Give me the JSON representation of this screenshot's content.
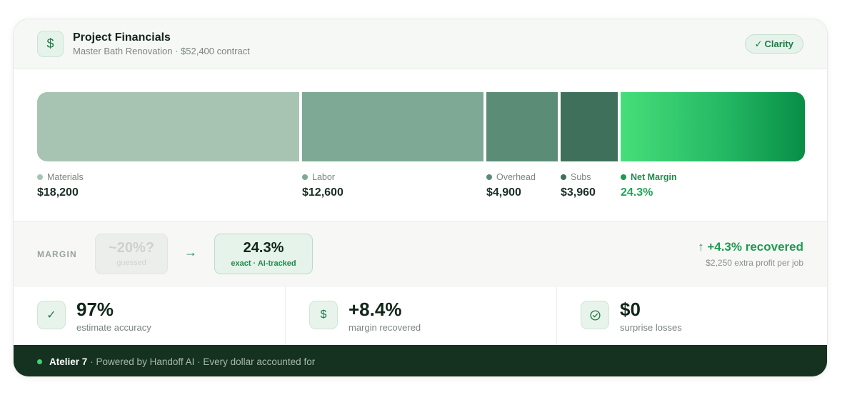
{
  "header": {
    "icon": "dollar-icon",
    "title": "Project Financials",
    "subtitle": "Master Bath Renovation · $52,400 contract",
    "badge_check": "✓",
    "badge_label": "Clarity"
  },
  "breakdown": {
    "colors": {
      "materials": "#a7c4b2",
      "labor": "#7da995",
      "overhead": "#5b8d76",
      "subs": "#3f705b",
      "net": "#25b964"
    },
    "materials": {
      "label": "Materials",
      "value": "$18,200"
    },
    "labor": {
      "label": "Labor",
      "value": "$12,600"
    },
    "overhead": {
      "label": "Overhead",
      "value": "$4,900"
    },
    "subs": {
      "label": "Subs",
      "value": "$3,960"
    },
    "net": {
      "label": "Net Margin",
      "value": "24.3%"
    }
  },
  "margin": {
    "label": "MARGIN",
    "guess_value": "~20%?",
    "guess_sub": "guessed",
    "arrow": "→",
    "exact_value": "24.3%",
    "exact_sub": "exact · AI-tracked",
    "recovered_title": "↑ +4.3% recovered",
    "recovered_sub": "$2,250 extra profit per job"
  },
  "stats": [
    {
      "icon": "check-icon",
      "glyph": "✓",
      "value": "97%",
      "label": "estimate accuracy"
    },
    {
      "icon": "dollar-icon",
      "glyph": "$",
      "value": "+8.4%",
      "label": "margin recovered"
    },
    {
      "icon": "check-circle-icon",
      "glyph": "✓",
      "value": "$0",
      "label": "surprise losses"
    }
  ],
  "footer": {
    "brand": "Atelier 7",
    "text": "· Powered by Handoff AI · Every dollar accounted for"
  }
}
